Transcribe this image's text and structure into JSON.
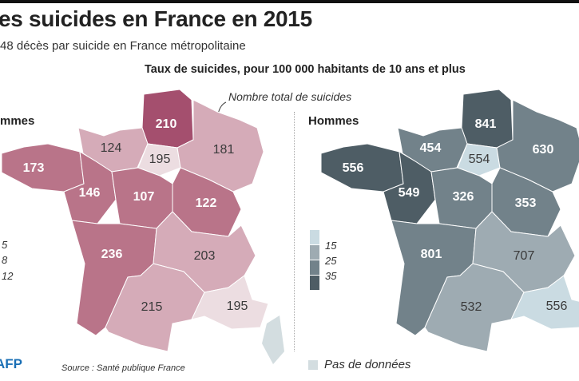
{
  "header": {
    "title": "es suicides en France en 2015",
    "subtitle": "48 décès par suicide en France métropolitaine",
    "map_title": "Taux de suicides, pour 100 000 habitants de 10 ans et plus",
    "annotation": "Nombre total de suicides"
  },
  "maps": {
    "women": {
      "heading": "mmes",
      "legend_breaks": [
        "5",
        "8",
        "12"
      ],
      "colors": [
        "#ecdde1",
        "#d5abb8",
        "#b97489",
        "#a44f6e"
      ],
      "regions": [
        {
          "id": "hauts-de-france",
          "count": "210",
          "class": 3
        },
        {
          "id": "normandie",
          "count": "124",
          "class": 1
        },
        {
          "id": "ile-de-france",
          "count": "195",
          "class": 0
        },
        {
          "id": "grand-est",
          "count": "181",
          "class": 1
        },
        {
          "id": "bretagne",
          "count": "173",
          "class": 2
        },
        {
          "id": "pays-de-la-loire",
          "count": "146",
          "class": 2
        },
        {
          "id": "centre-val-de-loire",
          "count": "107",
          "class": 2
        },
        {
          "id": "bourgogne-franche-comte",
          "count": "122",
          "class": 2
        },
        {
          "id": "nouvelle-aquitaine",
          "count": "236",
          "class": 2
        },
        {
          "id": "auvergne-rhone-alpes",
          "count": "203",
          "class": 1
        },
        {
          "id": "occitanie",
          "count": "215",
          "class": 1
        },
        {
          "id": "provence-alpes-cote-dazur",
          "count": "195",
          "class": 0
        }
      ]
    },
    "men": {
      "heading": "Hommes",
      "legend_breaks": [
        "15",
        "25",
        "35"
      ],
      "colors": [
        "#cadbe2",
        "#9eabb2",
        "#72828a",
        "#4e5d65"
      ],
      "regions": [
        {
          "id": "hauts-de-france",
          "count": "841",
          "class": 3
        },
        {
          "id": "normandie",
          "count": "454",
          "class": 2
        },
        {
          "id": "ile-de-france",
          "count": "554",
          "class": 0
        },
        {
          "id": "grand-est",
          "count": "630",
          "class": 2
        },
        {
          "id": "bretagne",
          "count": "556",
          "class": 3
        },
        {
          "id": "pays-de-la-loire",
          "count": "549",
          "class": 3
        },
        {
          "id": "centre-val-de-loire",
          "count": "326",
          "class": 2
        },
        {
          "id": "bourgogne-franche-comte",
          "count": "353",
          "class": 2
        },
        {
          "id": "nouvelle-aquitaine",
          "count": "801",
          "class": 2
        },
        {
          "id": "auvergne-rhone-alpes",
          "count": "707",
          "class": 1
        },
        {
          "id": "occitanie",
          "count": "532",
          "class": 1
        },
        {
          "id": "provence-alpes-cote-dazur",
          "count": "556",
          "class": 0
        }
      ]
    },
    "no_data_color": "#d3dde0"
  },
  "footer": {
    "no_data_label": "Pas de données",
    "source": "Source : Santé publique France",
    "logo": "AFP"
  }
}
